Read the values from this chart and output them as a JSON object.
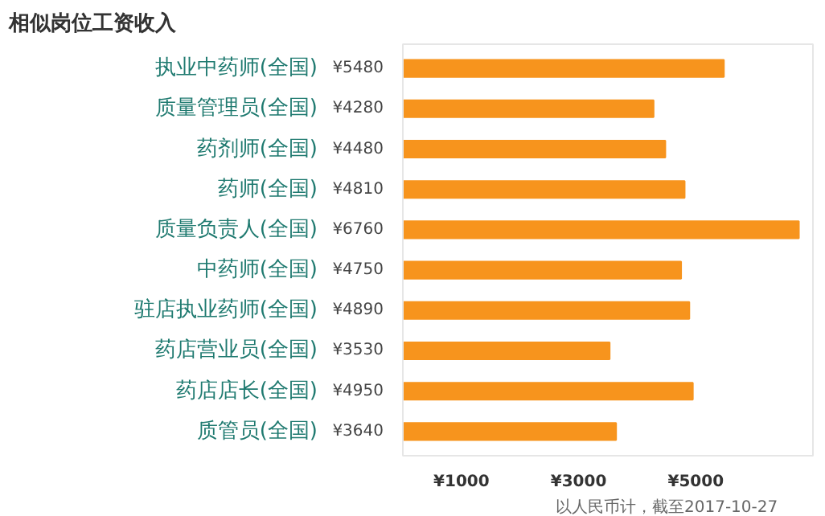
{
  "chart_data": {
    "type": "bar",
    "orientation": "horizontal",
    "title": "相似岗位工资收入",
    "categories": [
      "执业中药师(全国)",
      "质量管理员(全国)",
      "药剂师(全国)",
      "药师(全国)",
      "质量负责人(全国)",
      "中药师(全国)",
      "驻店执业药师(全国)",
      "药店营业员(全国)",
      "药店店长(全国)",
      "质管员(全国)"
    ],
    "values": [
      5480,
      4280,
      4480,
      4810,
      6760,
      4750,
      4890,
      3530,
      4950,
      3640
    ],
    "value_labels": [
      "¥5480",
      "¥4280",
      "¥4480",
      "¥4810",
      "¥6760",
      "¥4750",
      "¥4890",
      "¥3530",
      "¥4950",
      "¥3640"
    ],
    "color": "#f7941d",
    "xlim": [
      0,
      7000
    ],
    "xticks": [
      {
        "value": 1000,
        "label": "¥1000"
      },
      {
        "value": 3000,
        "label": "¥3000"
      },
      {
        "value": 5000,
        "label": "¥5000"
      }
    ],
    "grid": false,
    "annotations": [
      "以人民币计，截至2017-10-27"
    ]
  }
}
